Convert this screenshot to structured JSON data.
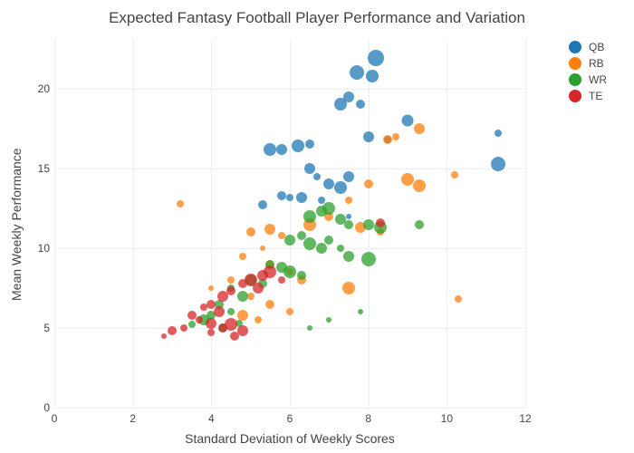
{
  "title": "Expected Fantasy Football Player Performance and Variation",
  "xlabel": "Standard Deviation of Weekly Scores",
  "ylabel": "Mean Weekly Performance",
  "xlim": [
    0,
    12
  ],
  "ylim": [
    0,
    23
  ],
  "xticks": [
    0,
    2,
    4,
    6,
    8,
    10,
    12
  ],
  "yticks": [
    0,
    5,
    10,
    15,
    20
  ],
  "title_fontsize": 17,
  "label_fontsize": 14,
  "tick_fontsize": 12,
  "background_color": "#ffffff",
  "grid_color": "#eeeeee",
  "text_color": "#444444",
  "series": [
    {
      "name": "QB",
      "color": "#1f77b4",
      "points": [
        {
          "x": 8.2,
          "y": 21.9,
          "size": 18
        },
        {
          "x": 8.1,
          "y": 20.8,
          "size": 14
        },
        {
          "x": 7.7,
          "y": 21.0,
          "size": 16
        },
        {
          "x": 7.3,
          "y": 19.0,
          "size": 14
        },
        {
          "x": 7.5,
          "y": 19.5,
          "size": 12
        },
        {
          "x": 7.8,
          "y": 19.0,
          "size": 10
        },
        {
          "x": 9.0,
          "y": 18.0,
          "size": 13
        },
        {
          "x": 11.3,
          "y": 17.2,
          "size": 8
        },
        {
          "x": 11.3,
          "y": 15.3,
          "size": 16
        },
        {
          "x": 5.5,
          "y": 16.2,
          "size": 14
        },
        {
          "x": 5.8,
          "y": 16.2,
          "size": 12
        },
        {
          "x": 6.2,
          "y": 16.4,
          "size": 14
        },
        {
          "x": 6.5,
          "y": 16.5,
          "size": 10
        },
        {
          "x": 6.5,
          "y": 15.0,
          "size": 12
        },
        {
          "x": 6.7,
          "y": 14.5,
          "size": 8
        },
        {
          "x": 7.0,
          "y": 14.0,
          "size": 12
        },
        {
          "x": 7.3,
          "y": 13.8,
          "size": 14
        },
        {
          "x": 7.5,
          "y": 14.5,
          "size": 12
        },
        {
          "x": 7.5,
          "y": 12.0,
          "size": 6
        },
        {
          "x": 5.8,
          "y": 13.3,
          "size": 10
        },
        {
          "x": 6.0,
          "y": 13.2,
          "size": 8
        },
        {
          "x": 6.3,
          "y": 13.2,
          "size": 12
        },
        {
          "x": 5.3,
          "y": 12.7,
          "size": 10
        },
        {
          "x": 6.8,
          "y": 13.0,
          "size": 8
        },
        {
          "x": 8.0,
          "y": 17.0,
          "size": 12
        },
        {
          "x": 8.5,
          "y": 16.8,
          "size": 8
        }
      ]
    },
    {
      "name": "RB",
      "color": "#ff7f0e",
      "points": [
        {
          "x": 9.3,
          "y": 17.5,
          "size": 12
        },
        {
          "x": 8.7,
          "y": 17.0,
          "size": 8
        },
        {
          "x": 8.5,
          "y": 16.8,
          "size": 10
        },
        {
          "x": 10.2,
          "y": 14.6,
          "size": 8
        },
        {
          "x": 9.0,
          "y": 14.3,
          "size": 14
        },
        {
          "x": 9.3,
          "y": 13.9,
          "size": 14
        },
        {
          "x": 8.0,
          "y": 14.0,
          "size": 10
        },
        {
          "x": 7.5,
          "y": 13.0,
          "size": 8
        },
        {
          "x": 10.3,
          "y": 6.8,
          "size": 8
        },
        {
          "x": 7.8,
          "y": 11.3,
          "size": 12
        },
        {
          "x": 7.0,
          "y": 12.0,
          "size": 10
        },
        {
          "x": 6.5,
          "y": 11.5,
          "size": 14
        },
        {
          "x": 5.5,
          "y": 11.2,
          "size": 12
        },
        {
          "x": 5.8,
          "y": 10.8,
          "size": 8
        },
        {
          "x": 5.0,
          "y": 11.0,
          "size": 10
        },
        {
          "x": 5.3,
          "y": 10.0,
          "size": 6
        },
        {
          "x": 4.8,
          "y": 9.5,
          "size": 8
        },
        {
          "x": 5.5,
          "y": 9.0,
          "size": 10
        },
        {
          "x": 6.0,
          "y": 8.5,
          "size": 8
        },
        {
          "x": 6.3,
          "y": 8.0,
          "size": 10
        },
        {
          "x": 4.5,
          "y": 8.0,
          "size": 8
        },
        {
          "x": 4.0,
          "y": 7.5,
          "size": 6
        },
        {
          "x": 5.0,
          "y": 7.0,
          "size": 8
        },
        {
          "x": 5.5,
          "y": 6.5,
          "size": 10
        },
        {
          "x": 6.0,
          "y": 6.0,
          "size": 8
        },
        {
          "x": 4.8,
          "y": 5.8,
          "size": 12
        },
        {
          "x": 5.2,
          "y": 5.5,
          "size": 8
        },
        {
          "x": 7.5,
          "y": 7.5,
          "size": 14
        },
        {
          "x": 3.2,
          "y": 12.8,
          "size": 8
        },
        {
          "x": 8.3,
          "y": 11.0,
          "size": 8
        }
      ]
    },
    {
      "name": "WR",
      "color": "#2ca02c",
      "points": [
        {
          "x": 6.5,
          "y": 12.0,
          "size": 14
        },
        {
          "x": 6.8,
          "y": 12.3,
          "size": 12
        },
        {
          "x": 7.0,
          "y": 12.5,
          "size": 14
        },
        {
          "x": 7.3,
          "y": 11.8,
          "size": 12
        },
        {
          "x": 7.5,
          "y": 11.5,
          "size": 10
        },
        {
          "x": 8.0,
          "y": 11.5,
          "size": 12
        },
        {
          "x": 8.3,
          "y": 11.3,
          "size": 14
        },
        {
          "x": 9.3,
          "y": 11.5,
          "size": 10
        },
        {
          "x": 6.0,
          "y": 10.5,
          "size": 12
        },
        {
          "x": 6.3,
          "y": 10.8,
          "size": 10
        },
        {
          "x": 6.5,
          "y": 10.3,
          "size": 14
        },
        {
          "x": 6.8,
          "y": 10.0,
          "size": 12
        },
        {
          "x": 7.0,
          "y": 10.5,
          "size": 10
        },
        {
          "x": 7.3,
          "y": 10.0,
          "size": 8
        },
        {
          "x": 7.5,
          "y": 9.5,
          "size": 12
        },
        {
          "x": 8.0,
          "y": 9.3,
          "size": 16
        },
        {
          "x": 5.5,
          "y": 9.0,
          "size": 10
        },
        {
          "x": 5.8,
          "y": 8.8,
          "size": 12
        },
        {
          "x": 6.0,
          "y": 8.5,
          "size": 14
        },
        {
          "x": 6.3,
          "y": 8.3,
          "size": 10
        },
        {
          "x": 5.0,
          "y": 8.0,
          "size": 12
        },
        {
          "x": 5.3,
          "y": 7.8,
          "size": 10
        },
        {
          "x": 4.5,
          "y": 7.5,
          "size": 8
        },
        {
          "x": 4.8,
          "y": 7.0,
          "size": 12
        },
        {
          "x": 4.2,
          "y": 6.5,
          "size": 10
        },
        {
          "x": 4.5,
          "y": 6.0,
          "size": 8
        },
        {
          "x": 4.0,
          "y": 5.8,
          "size": 10
        },
        {
          "x": 3.8,
          "y": 5.5,
          "size": 12
        },
        {
          "x": 3.5,
          "y": 5.2,
          "size": 8
        },
        {
          "x": 7.0,
          "y": 5.5,
          "size": 6
        },
        {
          "x": 6.5,
          "y": 5.0,
          "size": 6
        },
        {
          "x": 4.3,
          "y": 5.0,
          "size": 10
        },
        {
          "x": 4.7,
          "y": 5.3,
          "size": 8
        },
        {
          "x": 7.8,
          "y": 6.0,
          "size": 6
        }
      ]
    },
    {
      "name": "TE",
      "color": "#d62728",
      "points": [
        {
          "x": 8.3,
          "y": 11.6,
          "size": 10
        },
        {
          "x": 5.5,
          "y": 8.5,
          "size": 14
        },
        {
          "x": 5.3,
          "y": 8.3,
          "size": 12
        },
        {
          "x": 5.0,
          "y": 8.0,
          "size": 14
        },
        {
          "x": 4.8,
          "y": 7.8,
          "size": 10
        },
        {
          "x": 5.2,
          "y": 7.5,
          "size": 12
        },
        {
          "x": 4.5,
          "y": 7.3,
          "size": 10
        },
        {
          "x": 4.3,
          "y": 7.0,
          "size": 12
        },
        {
          "x": 4.0,
          "y": 6.5,
          "size": 10
        },
        {
          "x": 4.2,
          "y": 6.0,
          "size": 12
        },
        {
          "x": 3.8,
          "y": 6.3,
          "size": 8
        },
        {
          "x": 3.5,
          "y": 5.8,
          "size": 10
        },
        {
          "x": 3.7,
          "y": 5.5,
          "size": 8
        },
        {
          "x": 4.0,
          "y": 5.3,
          "size": 12
        },
        {
          "x": 4.3,
          "y": 5.0,
          "size": 10
        },
        {
          "x": 4.5,
          "y": 5.2,
          "size": 14
        },
        {
          "x": 4.8,
          "y": 4.8,
          "size": 12
        },
        {
          "x": 3.3,
          "y": 5.0,
          "size": 8
        },
        {
          "x": 3.0,
          "y": 4.8,
          "size": 10
        },
        {
          "x": 2.8,
          "y": 4.5,
          "size": 6
        },
        {
          "x": 4.6,
          "y": 4.5,
          "size": 10
        },
        {
          "x": 4.0,
          "y": 4.7,
          "size": 8
        },
        {
          "x": 5.8,
          "y": 8.0,
          "size": 8
        }
      ]
    }
  ],
  "legend": {
    "items": [
      "QB",
      "RB",
      "WR",
      "TE"
    ]
  }
}
